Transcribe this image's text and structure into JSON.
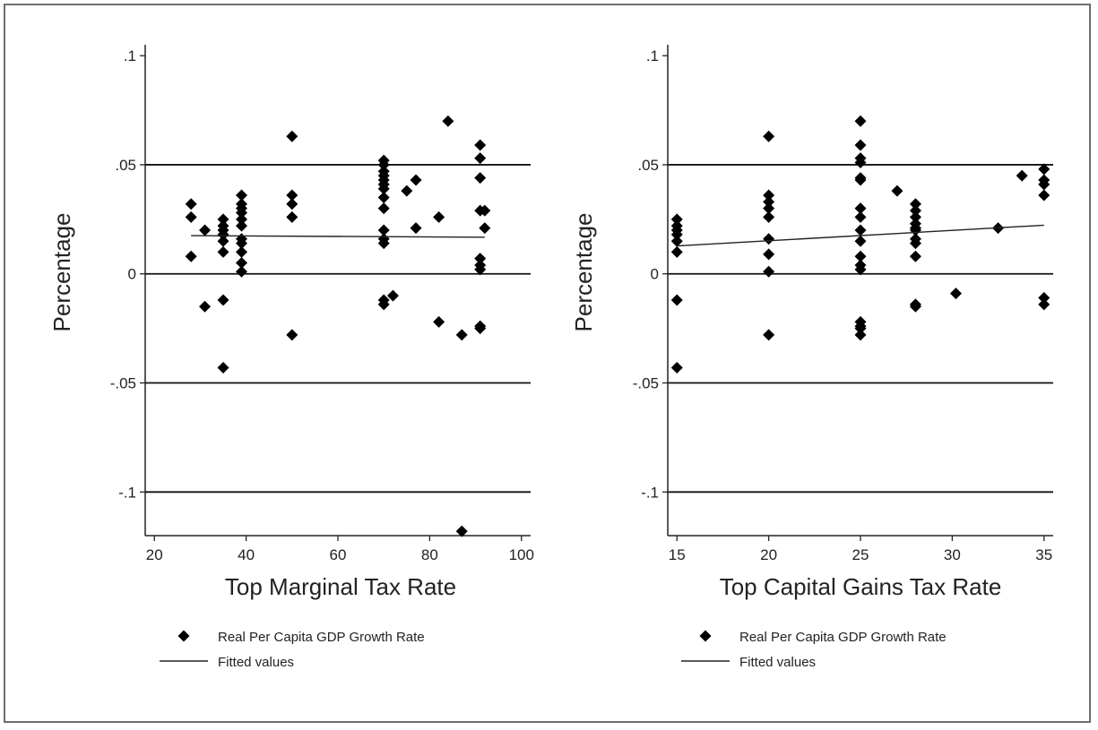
{
  "chart_data": [
    {
      "type": "scatter",
      "xlabel": "Top Marginal Tax Rate",
      "ylabel": "Percentage",
      "xlim": [
        18,
        102
      ],
      "ylim": [
        -0.12,
        0.105
      ],
      "xticks": [
        20,
        40,
        60,
        80,
        100
      ],
      "xtick_labels": [
        "20",
        "40",
        "60",
        "80",
        "100"
      ],
      "yticks": [
        0.1,
        0.05,
        0,
        -0.05,
        -0.1
      ],
      "ytick_labels": [
        ".1",
        ".05",
        "0",
        "-.05",
        "-.1"
      ],
      "grid_y": true,
      "legend_position": "bottom",
      "series": [
        {
          "name": "Real Per Capita GDP Growth Rate",
          "kind": "scatter",
          "marker": "diamond",
          "points": [
            [
              28,
              0.032
            ],
            [
              28,
              0.026
            ],
            [
              28,
              0.008
            ],
            [
              31,
              0.02
            ],
            [
              31,
              -0.015
            ],
            [
              35,
              0.025
            ],
            [
              35,
              0.022
            ],
            [
              35,
              0.02
            ],
            [
              35,
              0.018
            ],
            [
              35,
              0.015
            ],
            [
              35,
              0.01
            ],
            [
              35,
              -0.012
            ],
            [
              35,
              -0.043
            ],
            [
              39,
              0.036
            ],
            [
              39,
              0.032
            ],
            [
              39,
              0.03
            ],
            [
              39,
              0.028
            ],
            [
              39,
              0.025
            ],
            [
              39,
              0.022
            ],
            [
              39,
              0.016
            ],
            [
              39,
              0.014
            ],
            [
              39,
              0.01
            ],
            [
              39,
              0.005
            ],
            [
              39,
              0.001
            ],
            [
              50,
              0.063
            ],
            [
              50,
              0.036
            ],
            [
              50,
              0.032
            ],
            [
              50,
              0.026
            ],
            [
              50,
              -0.028
            ],
            [
              70,
              0.052
            ],
            [
              70,
              0.05
            ],
            [
              70,
              0.047
            ],
            [
              70,
              0.045
            ],
            [
              70,
              0.043
            ],
            [
              70,
              0.041
            ],
            [
              70,
              0.039
            ],
            [
              70,
              0.035
            ],
            [
              70,
              0.03
            ],
            [
              70,
              0.02
            ],
            [
              70,
              0.016
            ],
            [
              70,
              0.014
            ],
            [
              70,
              -0.012
            ],
            [
              70,
              -0.014
            ],
            [
              72,
              -0.01
            ],
            [
              75,
              0.038
            ],
            [
              77,
              0.043
            ],
            [
              77,
              0.021
            ],
            [
              82,
              0.026
            ],
            [
              82,
              -0.022
            ],
            [
              84,
              0.07
            ],
            [
              87,
              -0.028
            ],
            [
              87,
              -0.118
            ],
            [
              91,
              0.059
            ],
            [
              91,
              0.053
            ],
            [
              91,
              0.044
            ],
            [
              91,
              0.029
            ],
            [
              91,
              0.007
            ],
            [
              91,
              0.004
            ],
            [
              91,
              0.002
            ],
            [
              91,
              -0.024
            ],
            [
              91,
              -0.025
            ],
            [
              92,
              0.029
            ],
            [
              92,
              0.021
            ]
          ]
        },
        {
          "name": "Fitted values",
          "kind": "line",
          "points": [
            [
              28,
              0.0175
            ],
            [
              92,
              0.0168
            ]
          ]
        }
      ]
    },
    {
      "type": "scatter",
      "xlabel": "Top Capital Gains Tax Rate",
      "ylabel": "Percentage",
      "xlim": [
        14.5,
        35.5
      ],
      "ylim": [
        -0.12,
        0.105
      ],
      "xticks": [
        15,
        20,
        25,
        30,
        35
      ],
      "xtick_labels": [
        "15",
        "20",
        "25",
        "30",
        "35"
      ],
      "yticks": [
        0.1,
        0.05,
        0,
        -0.05,
        -0.1
      ],
      "ytick_labels": [
        ".1",
        ".05",
        "0",
        "-.05",
        "-.1"
      ],
      "grid_y": true,
      "legend_position": "bottom",
      "series": [
        {
          "name": "Real Per Capita GDP Growth Rate",
          "kind": "scatter",
          "marker": "diamond",
          "points": [
            [
              15,
              0.025
            ],
            [
              15,
              0.022
            ],
            [
              15,
              0.02
            ],
            [
              15,
              0.018
            ],
            [
              15,
              0.015
            ],
            [
              15,
              0.01
            ],
            [
              15,
              -0.012
            ],
            [
              15,
              -0.043
            ],
            [
              20,
              0.063
            ],
            [
              20,
              0.036
            ],
            [
              20,
              0.033
            ],
            [
              20,
              0.03
            ],
            [
              20,
              0.026
            ],
            [
              20,
              0.016
            ],
            [
              20,
              0.009
            ],
            [
              20,
              0.001
            ],
            [
              20,
              -0.028
            ],
            [
              25,
              0.07
            ],
            [
              25,
              0.059
            ],
            [
              25,
              0.053
            ],
            [
              25,
              0.051
            ],
            [
              25,
              0.044
            ],
            [
              25,
              0.043
            ],
            [
              25,
              0.03
            ],
            [
              25,
              0.026
            ],
            [
              25,
              0.02
            ],
            [
              25,
              0.015
            ],
            [
              25,
              0.008
            ],
            [
              25,
              0.004
            ],
            [
              25,
              0.002
            ],
            [
              25,
              -0.022
            ],
            [
              25,
              -0.024
            ],
            [
              25,
              -0.025
            ],
            [
              25,
              -0.028
            ],
            [
              27,
              0.038
            ],
            [
              28,
              0.032
            ],
            [
              28,
              0.029
            ],
            [
              28,
              0.026
            ],
            [
              28,
              0.023
            ],
            [
              28,
              0.021
            ],
            [
              28,
              0.02
            ],
            [
              28,
              0.016
            ],
            [
              28,
              0.014
            ],
            [
              28,
              0.008
            ],
            [
              28,
              -0.014
            ],
            [
              28,
              -0.015
            ],
            [
              30.2,
              -0.009
            ],
            [
              32.5,
              0.021
            ],
            [
              33.8,
              0.045
            ],
            [
              35,
              0.048
            ],
            [
              35,
              0.043
            ],
            [
              35,
              0.041
            ],
            [
              35,
              0.036
            ],
            [
              35,
              -0.011
            ],
            [
              35,
              -0.014
            ]
          ]
        },
        {
          "name": "Fitted values",
          "kind": "line",
          "points": [
            [
              15,
              0.0128
            ],
            [
              35,
              0.0223
            ]
          ]
        }
      ]
    }
  ]
}
